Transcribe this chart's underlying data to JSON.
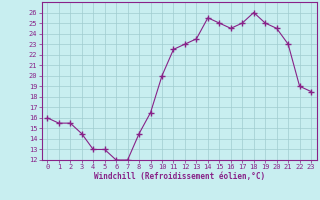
{
  "x": [
    0,
    1,
    2,
    3,
    4,
    5,
    6,
    7,
    8,
    9,
    10,
    11,
    12,
    13,
    14,
    15,
    16,
    17,
    18,
    19,
    20,
    21,
    22,
    23
  ],
  "y": [
    16.0,
    15.5,
    15.5,
    14.5,
    13.0,
    13.0,
    12.0,
    12.0,
    14.5,
    16.5,
    20.0,
    22.5,
    23.0,
    23.5,
    25.5,
    25.0,
    24.5,
    25.0,
    26.0,
    25.0,
    24.5,
    23.0,
    19.0,
    18.5
  ],
  "line_color": "#882288",
  "marker": "+",
  "marker_size": 4,
  "bg_color": "#c8eef0",
  "grid_color": "#a0ccd0",
  "xlabel": "Windchill (Refroidissement éolien,°C)",
  "ylim": [
    12,
    27
  ],
  "xlim": [
    -0.5,
    23.5
  ],
  "yticks": [
    12,
    13,
    14,
    15,
    16,
    17,
    18,
    19,
    20,
    21,
    22,
    23,
    24,
    25,
    26
  ],
  "xticks": [
    0,
    1,
    2,
    3,
    4,
    5,
    6,
    7,
    8,
    9,
    10,
    11,
    12,
    13,
    14,
    15,
    16,
    17,
    18,
    19,
    20,
    21,
    22,
    23
  ],
  "tick_color": "#882288",
  "label_color": "#882288",
  "spine_color": "#882288",
  "tick_fontsize": 5.0,
  "xlabel_fontsize": 5.5,
  "linewidth": 0.8,
  "marker_linewidth": 1.0
}
